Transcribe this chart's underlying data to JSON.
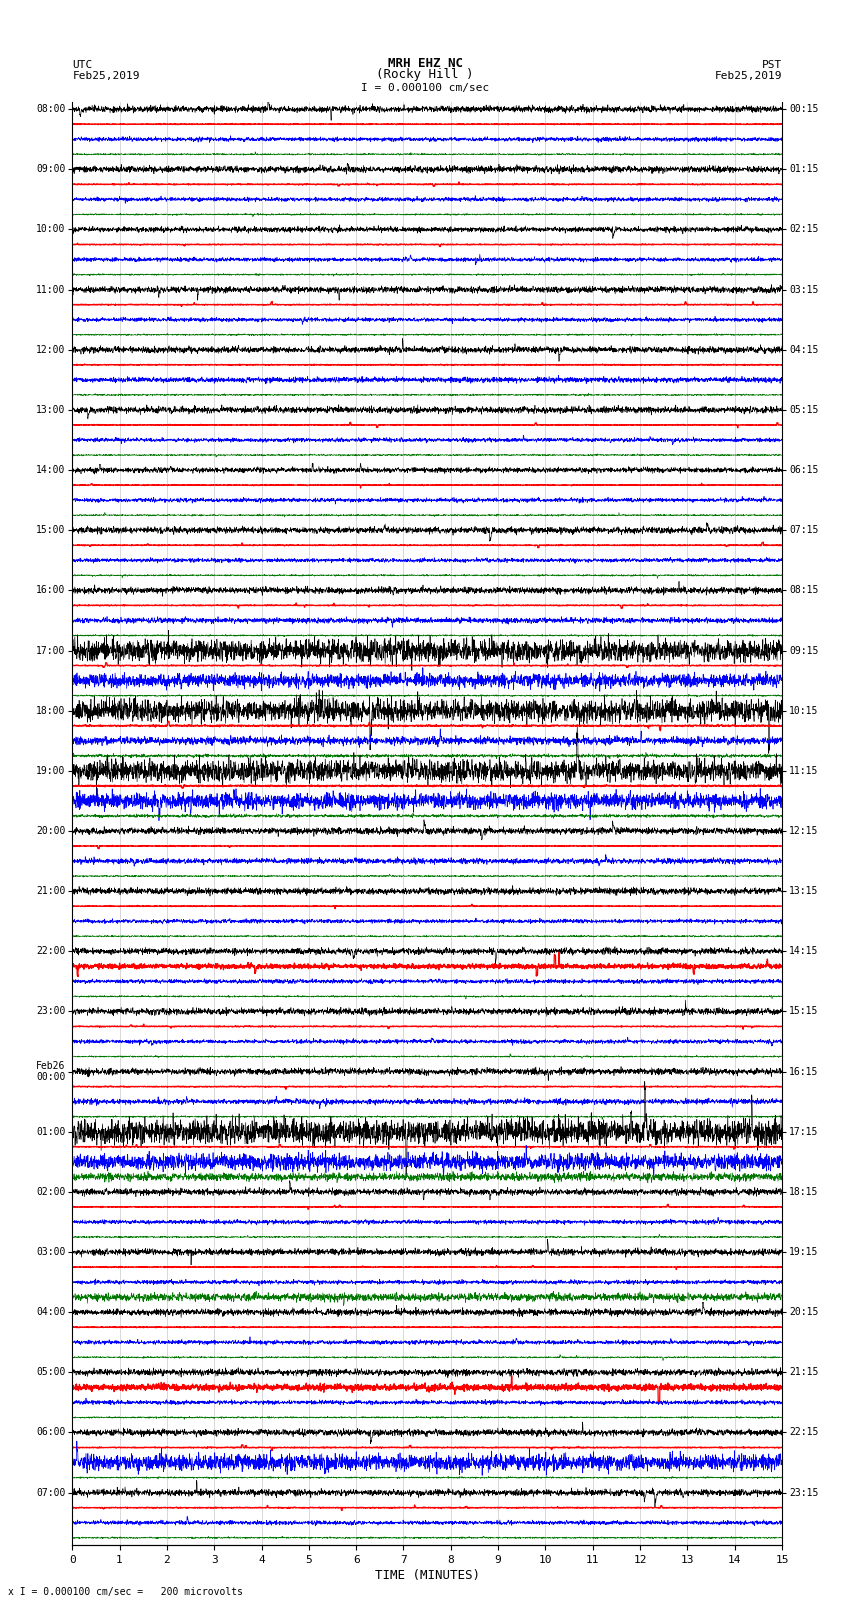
{
  "title_line1": "MRH EHZ NC",
  "title_line2": "(Rocky Hill )",
  "scale_text": "I = 0.000100 cm/sec",
  "utc_label": "UTC",
  "utc_date": "Feb25,2019",
  "pst_label": "PST",
  "pst_date": "Feb25,2019",
  "xlabel": "TIME (MINUTES)",
  "footer": "x I = 0.000100 cm/sec =   200 microvolts",
  "xlim": [
    0,
    15
  ],
  "xticks": [
    0,
    1,
    2,
    3,
    4,
    5,
    6,
    7,
    8,
    9,
    10,
    11,
    12,
    13,
    14,
    15
  ],
  "bg_color": "#ffffff",
  "grid_color": "#aaaaaa",
  "trace_colors": [
    "#000000",
    "#ff0000",
    "#0000ff",
    "#007700"
  ],
  "n_hours": 24,
  "traces_per_hour": 4,
  "utc_hour_labels": [
    "08:00",
    "09:00",
    "10:00",
    "11:00",
    "12:00",
    "13:00",
    "14:00",
    "15:00",
    "16:00",
    "17:00",
    "18:00",
    "19:00",
    "20:00",
    "21:00",
    "22:00",
    "23:00",
    "Feb26\n00:00",
    "01:00",
    "02:00",
    "03:00",
    "04:00",
    "05:00",
    "06:00",
    "07:00"
  ],
  "pst_hour_labels": [
    "00:15",
    "01:15",
    "02:15",
    "03:15",
    "04:15",
    "05:15",
    "06:15",
    "07:15",
    "08:15",
    "09:15",
    "10:15",
    "11:15",
    "12:15",
    "13:15",
    "14:15",
    "15:15",
    "16:15",
    "17:15",
    "18:15",
    "19:15",
    "20:15",
    "21:15",
    "22:15",
    "23:15"
  ],
  "noise_amps": {
    "black": [
      0.1,
      0.1,
      0.08,
      0.1,
      0.1,
      0.1,
      0.08,
      0.1,
      0.1,
      0.12,
      0.35,
      0.35,
      0.1,
      0.1,
      0.1,
      0.1,
      0.1,
      0.1,
      0.1,
      0.1,
      0.1,
      0.1,
      0.1,
      0.1
    ],
    "red": [
      0.03,
      0.03,
      0.03,
      0.03,
      0.03,
      0.03,
      0.03,
      0.03,
      0.03,
      0.03,
      0.05,
      0.05,
      0.03,
      0.03,
      0.03,
      0.03,
      0.03,
      0.03,
      0.03,
      0.03,
      0.03,
      0.03,
      0.03,
      0.03
    ],
    "blue": [
      0.06,
      0.06,
      0.06,
      0.06,
      0.08,
      0.06,
      0.06,
      0.06,
      0.08,
      0.1,
      0.12,
      0.12,
      0.08,
      0.06,
      0.06,
      0.06,
      0.08,
      0.06,
      0.06,
      0.06,
      0.06,
      0.06,
      0.08,
      0.06
    ],
    "green": [
      0.04,
      0.04,
      0.04,
      0.04,
      0.04,
      0.04,
      0.04,
      0.04,
      0.04,
      0.04,
      0.08,
      0.08,
      0.04,
      0.04,
      0.04,
      0.04,
      0.04,
      0.04,
      0.04,
      0.04,
      0.04,
      0.04,
      0.04,
      0.04
    ]
  },
  "special_amplitudes": {
    "9_black": 0.35,
    "9_blue": 0.2,
    "17_black": 0.4,
    "17_blue": 0.25,
    "17_green": 0.2,
    "11_blue": 0.25,
    "14_red": 0.15,
    "19_green": 0.2,
    "21_red": 0.2,
    "22_blue": 0.25
  }
}
